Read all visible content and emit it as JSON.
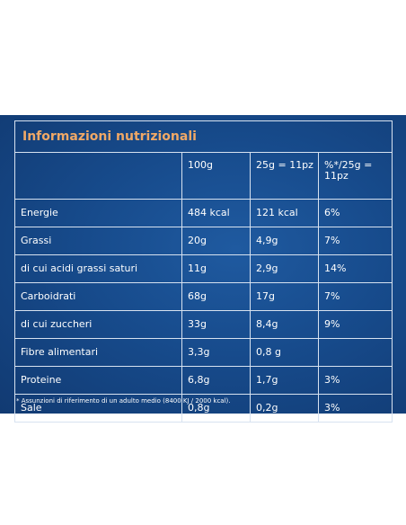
{
  "title": "Informazioni nutrizionali",
  "columns": [
    "",
    "100g",
    "25g = 11pz",
    "%*/25g = 11pz"
  ],
  "rows": [
    {
      "name": "Energie",
      "per100": "484 kcal",
      "per25": "121 kcal",
      "pct": "6%"
    },
    {
      "name": "Grassi",
      "per100": "20g",
      "per25": "4,9g",
      "pct": "7%"
    },
    {
      "name": "di cui acidi grassi saturi",
      "per100": "11g",
      "per25": "2,9g",
      "pct": "14%"
    },
    {
      "name": "Carboidrati",
      "per100": "68g",
      "per25": "17g",
      "pct": "7%"
    },
    {
      "name": "di cui zuccheri",
      "per100": "33g",
      "per25": "8,4g",
      "pct": "9%"
    },
    {
      "name": "Fibre alimentari",
      "per100": "3,3g",
      "per25": "0,8 g",
      "pct": ""
    },
    {
      "name": "Proteine",
      "per100": "6,8g",
      "per25": "1,7g",
      "pct": "3%"
    },
    {
      "name": "Sale",
      "per100": "0,8g",
      "per25": "0,2g",
      "pct": "3%"
    }
  ],
  "footnote": "* Assunzioni di riferimento di un adulto medio (8400 KJ / 2000 kcal).",
  "colors": {
    "background": "#174b8c",
    "title": "#f0a866",
    "text": "#ffffff",
    "border": "#d7e2f0"
  }
}
